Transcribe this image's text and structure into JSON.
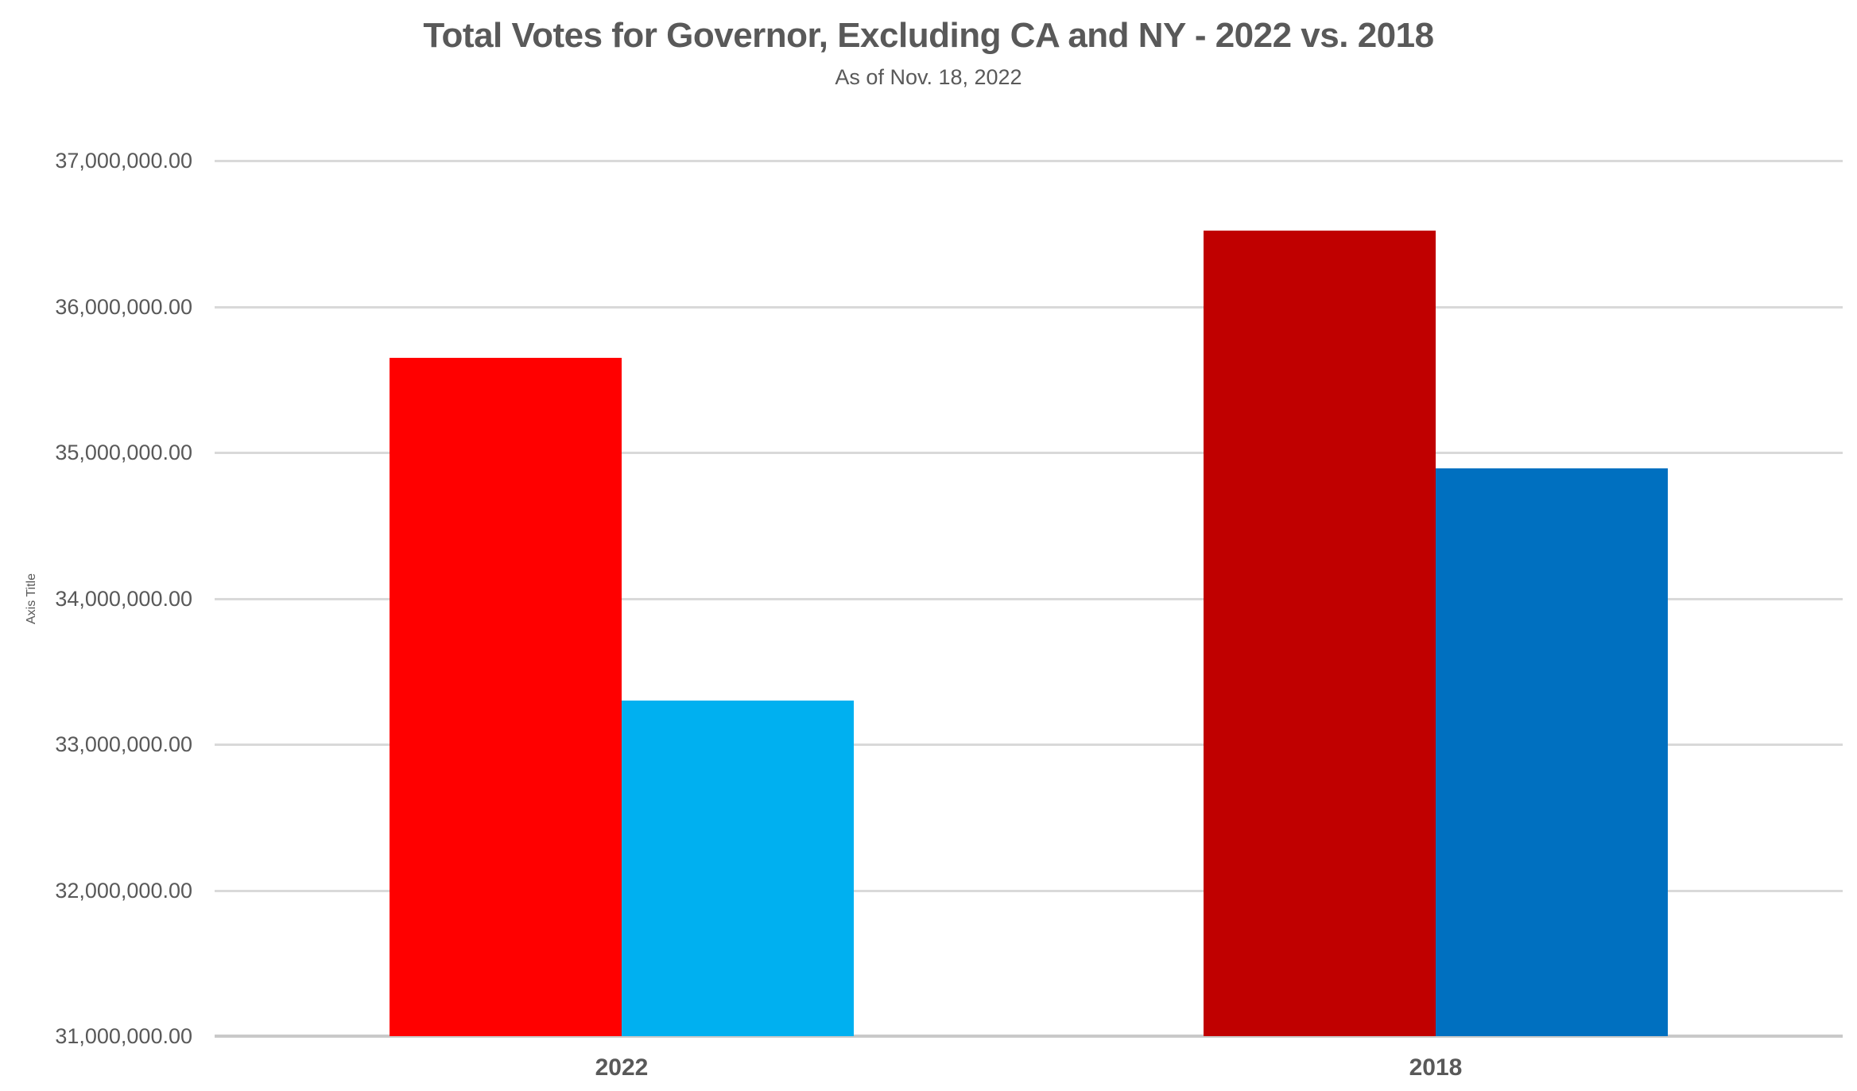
{
  "chart_data": {
    "type": "bar",
    "title": "Total Votes for Governor, Excluding CA and NY - 2022 vs. 2018",
    "subtitle": "As of Nov. 18, 2022",
    "xlabel": "",
    "ylabel": "Axis Title",
    "categories": [
      "2022",
      "2018"
    ],
    "series": [
      {
        "name": "red",
        "values": [
          35650000,
          36520000
        ],
        "colors": [
          "#FF0000",
          "#C00000"
        ]
      },
      {
        "name": "blue",
        "values": [
          33300000,
          34890000
        ],
        "colors": [
          "#00B0F0",
          "#0070C0"
        ]
      }
    ],
    "ylim": [
      31000000,
      37000000
    ],
    "ytick_step": 1000000,
    "yticks": [
      {
        "value": 31000000,
        "label": "31,000,000.00"
      },
      {
        "value": 32000000,
        "label": "32,000,000.00"
      },
      {
        "value": 33000000,
        "label": "33,000,000.00"
      },
      {
        "value": 34000000,
        "label": "34,000,000.00"
      },
      {
        "value": 35000000,
        "label": "35,000,000.00"
      },
      {
        "value": 36000000,
        "label": "36,000,000.00"
      },
      {
        "value": 37000000,
        "label": "37,000,000.00"
      }
    ],
    "grid": true,
    "legend": "none",
    "colors": {
      "text": "#595959",
      "gridline": "#D9D9D9",
      "axis_line": "#C9C9C9",
      "background": "#FFFFFF"
    }
  }
}
